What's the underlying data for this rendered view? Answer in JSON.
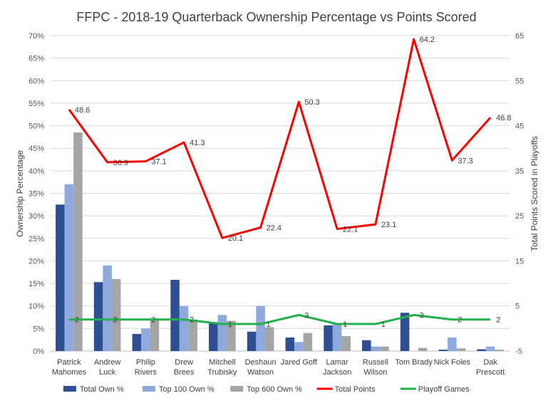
{
  "chart_data": {
    "type": "bar",
    "title": "FFPC - 2018-19 Quarterback Ownership Percentage vs Points Scored",
    "ylabel": "Ownership Percentage",
    "y2label": "Total Points Scored in Playoffs",
    "ylim": [
      0,
      70
    ],
    "y2lim": [
      -5,
      65
    ],
    "yticks": [
      "0%",
      "5%",
      "10%",
      "15%",
      "20%",
      "25%",
      "30%",
      "35%",
      "40%",
      "45%",
      "50%",
      "55%",
      "60%",
      "65%",
      "70%"
    ],
    "y2ticks": [
      "-5",
      "5",
      "15",
      "25",
      "35",
      "45",
      "55",
      "65"
    ],
    "grid": true,
    "legend_position": "bottom",
    "categories": [
      [
        "Patrick",
        "Mahomes"
      ],
      [
        "Andrew",
        "Luck"
      ],
      [
        "Philip",
        "Rivers"
      ],
      [
        "Drew",
        "Brees"
      ],
      [
        "Mitchell",
        "Trubisky"
      ],
      [
        "Deshaun",
        "Watson"
      ],
      [
        "Jared Goff"
      ],
      [
        "Lamar",
        "Jackson"
      ],
      [
        "Russell",
        "Wilson"
      ],
      [
        "Tom Brady"
      ],
      [
        "Nick Foles"
      ],
      [
        "Dak",
        "Prescott"
      ]
    ],
    "bar_series": [
      {
        "name": "Total Own %",
        "color": "#2F4F93",
        "values": [
          32.5,
          15.3,
          3.8,
          15.8,
          6.4,
          4.3,
          3.0,
          5.7,
          2.4,
          8.5,
          0.3,
          0.4
        ]
      },
      {
        "name": "Top 100 Own %",
        "color": "#8EA9DB",
        "values": [
          37.0,
          19.0,
          5.0,
          10.0,
          8.0,
          10.0,
          2.0,
          6.0,
          1.0,
          0.0,
          3.0,
          1.0
        ]
      },
      {
        "name": "Top 600 Own %",
        "color": "#A5A5A5",
        "values": [
          48.5,
          16.0,
          6.8,
          7.0,
          6.7,
          5.3,
          4.0,
          3.3,
          1.0,
          0.7,
          0.6,
          0.3
        ]
      }
    ],
    "line_series": [
      {
        "name": "Total Points",
        "color": "#FF0000",
        "axis": "secondary",
        "values": [
          48.6,
          36.9,
          37.1,
          41.3,
          20.1,
          22.4,
          50.3,
          22.1,
          23.1,
          64.2,
          37.3,
          46.8
        ],
        "labels": [
          "48.6",
          "36.9",
          "37.1",
          "41.3",
          "20.1",
          "22.4",
          "50.3",
          "22.1",
          "23.1",
          "64.2",
          "37.3",
          "46.8"
        ]
      },
      {
        "name": "Playoff Games",
        "color": "#22B04B",
        "axis": "secondary",
        "values": [
          2,
          2,
          2,
          2,
          1,
          1,
          3,
          1,
          1,
          3,
          2,
          2
        ],
        "labels": [
          "2",
          "2",
          "2",
          "2",
          "1",
          "1",
          "3",
          "1",
          "1",
          "3",
          "2",
          "2"
        ]
      }
    ]
  }
}
